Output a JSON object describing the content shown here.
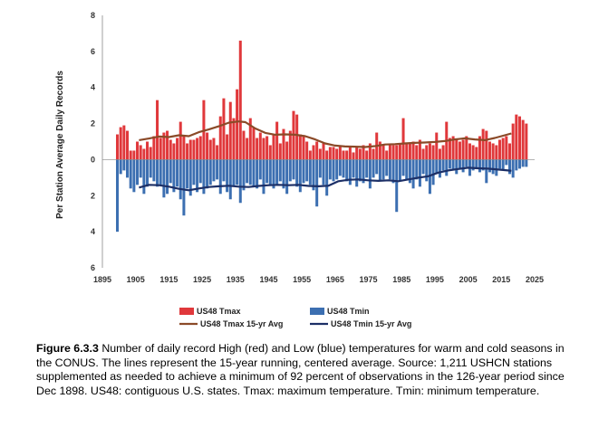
{
  "chart_data": {
    "type": "bar",
    "ylabel": "Per Station Average Daily Records",
    "ylim": [
      -6,
      8
    ],
    "y_ticks": [
      {
        "value": 8,
        "label": "8"
      },
      {
        "value": 6,
        "label": "6"
      },
      {
        "value": 4,
        "label": "4"
      },
      {
        "value": 2,
        "label": "2"
      },
      {
        "value": 0,
        "label": "0"
      },
      {
        "value": -2,
        "label": "2"
      },
      {
        "value": -4,
        "label": "4"
      },
      {
        "value": -6,
        "label": "6"
      }
    ],
    "xlim": [
      1895,
      2025
    ],
    "x_ticks": [
      "1895",
      "1905",
      "1915",
      "1925",
      "1935",
      "1945",
      "1955",
      "1965",
      "1975",
      "1985",
      "1995",
      "2005",
      "2015",
      "2025"
    ],
    "grid": false,
    "legend_position": "bottom",
    "years_start": 1899,
    "series": [
      {
        "name": "US48 Tmax",
        "color": "#e0383b",
        "values": [
          1.4,
          1.8,
          1.9,
          1.6,
          0.5,
          0.5,
          1.0,
          0.8,
          0.6,
          1.0,
          0.7,
          1.3,
          3.3,
          1.2,
          1.5,
          1.6,
          1.1,
          0.9,
          1.2,
          2.1,
          1.3,
          0.9,
          1.1,
          1.1,
          1.2,
          1.3,
          3.3,
          1.5,
          1.1,
          1.2,
          0.8,
          2.4,
          3.4,
          1.4,
          3.2,
          2.3,
          3.9,
          6.6,
          1.6,
          1.2,
          2.3,
          1.8,
          1.2,
          1.5,
          1.2,
          1.3,
          0.8,
          1.4,
          2.1,
          0.9,
          1.7,
          1.0,
          1.6,
          2.7,
          2.5,
          1.4,
          1.3,
          1.0,
          0.5,
          0.8,
          1.0,
          0.6,
          0.9,
          0.5,
          0.7,
          0.7,
          0.6,
          0.8,
          0.5,
          0.5,
          0.7,
          0.4,
          0.7,
          0.6,
          0.8,
          0.5,
          0.9,
          0.6,
          1.5,
          1.0,
          0.8,
          0.5,
          0.9,
          0.8,
          0.8,
          0.9,
          2.3,
          0.9,
          0.9,
          1.0,
          0.8,
          1.1,
          0.6,
          0.8,
          0.9,
          0.8,
          1.5,
          0.6,
          0.8,
          2.1,
          1.2,
          1.3,
          1.1,
          1.0,
          1.1,
          1.3,
          0.9,
          0.8,
          0.7,
          1.3,
          1.7,
          1.6,
          1.0,
          0.9,
          0.8,
          1.1,
          1.2,
          1.3,
          0.9,
          2.0,
          2.5,
          2.4,
          2.2,
          2.0
        ]
      },
      {
        "name": "US48 Tmin",
        "color": "#3c6fb1",
        "values": [
          4.0,
          0.8,
          0.6,
          1.0,
          1.6,
          1.8,
          1.4,
          1.0,
          1.9,
          1.5,
          1.0,
          1.2,
          1.5,
          1.4,
          2.1,
          1.9,
          1.3,
          1.8,
          1.5,
          2.2,
          3.1,
          1.6,
          2.0,
          1.4,
          1.8,
          1.3,
          1.9,
          1.6,
          1.4,
          1.2,
          1.1,
          1.9,
          1.2,
          1.8,
          2.2,
          1.5,
          1.4,
          2.4,
          1.7,
          1.3,
          1.4,
          1.5,
          1.6,
          1.1,
          1.9,
          1.3,
          1.4,
          1.6,
          1.4,
          1.2,
          1.6,
          1.9,
          1.2,
          1.1,
          1.5,
          1.8,
          1.3,
          1.2,
          1.4,
          1.7,
          2.6,
          1.0,
          1.4,
          2.0,
          1.1,
          1.2,
          1.1,
          0.9,
          1.0,
          1.2,
          1.4,
          1.0,
          1.5,
          1.2,
          1.3,
          1.0,
          1.6,
          1.0,
          0.8,
          1.2,
          1.1,
          0.9,
          1.1,
          1.3,
          2.9,
          1.2,
          0.9,
          1.1,
          1.3,
          1.6,
          1.1,
          1.5,
          0.8,
          1.2,
          1.9,
          1.4,
          0.8,
          1.0,
          0.6,
          0.9,
          0.5,
          0.6,
          0.8,
          0.5,
          0.7,
          0.4,
          0.9,
          0.6,
          0.5,
          0.7,
          0.6,
          1.3,
          0.7,
          0.8,
          0.9,
          0.5,
          0.6,
          0.3,
          0.8,
          1.0,
          0.6,
          0.5,
          0.4,
          0.4
        ]
      },
      {
        "name": "US48 Tmax 15-yr Avg",
        "color": "#8b4a28",
        "points": [
          [
            1906,
            1.08
          ],
          [
            1909,
            1.17
          ],
          [
            1912,
            1.28
          ],
          [
            1915,
            1.25
          ],
          [
            1918,
            1.35
          ],
          [
            1921,
            1.3
          ],
          [
            1924,
            1.52
          ],
          [
            1927,
            1.67
          ],
          [
            1930,
            1.85
          ],
          [
            1933,
            2.05
          ],
          [
            1936,
            2.12
          ],
          [
            1938,
            2.08
          ],
          [
            1941,
            1.73
          ],
          [
            1944,
            1.48
          ],
          [
            1947,
            1.38
          ],
          [
            1950,
            1.4
          ],
          [
            1953,
            1.38
          ],
          [
            1956,
            1.3
          ],
          [
            1959,
            1.12
          ],
          [
            1962,
            0.9
          ],
          [
            1965,
            0.78
          ],
          [
            1968,
            0.73
          ],
          [
            1971,
            0.72
          ],
          [
            1974,
            0.7
          ],
          [
            1977,
            0.75
          ],
          [
            1980,
            0.84
          ],
          [
            1983,
            0.86
          ],
          [
            1986,
            0.9
          ],
          [
            1989,
            0.93
          ],
          [
            1992,
            0.95
          ],
          [
            1995,
            0.98
          ],
          [
            1998,
            1.03
          ],
          [
            2001,
            1.12
          ],
          [
            2004,
            1.18
          ],
          [
            2007,
            1.12
          ],
          [
            2010,
            1.08
          ],
          [
            2013,
            1.2
          ],
          [
            2016,
            1.35
          ],
          [
            2018,
            1.45
          ]
        ]
      },
      {
        "name": "US48 Tmin 15-yr Avg",
        "color": "#1c2f66",
        "points": [
          [
            1906,
            -1.55
          ],
          [
            1909,
            -1.4
          ],
          [
            1912,
            -1.42
          ],
          [
            1915,
            -1.5
          ],
          [
            1918,
            -1.62
          ],
          [
            1921,
            -1.7
          ],
          [
            1924,
            -1.6
          ],
          [
            1927,
            -1.52
          ],
          [
            1930,
            -1.48
          ],
          [
            1933,
            -1.45
          ],
          [
            1936,
            -1.5
          ],
          [
            1939,
            -1.52
          ],
          [
            1942,
            -1.46
          ],
          [
            1945,
            -1.42
          ],
          [
            1948,
            -1.4
          ],
          [
            1951,
            -1.42
          ],
          [
            1954,
            -1.4
          ],
          [
            1957,
            -1.46
          ],
          [
            1960,
            -1.48
          ],
          [
            1963,
            -1.45
          ],
          [
            1966,
            -1.2
          ],
          [
            1969,
            -1.12
          ],
          [
            1972,
            -1.1
          ],
          [
            1975,
            -1.15
          ],
          [
            1978,
            -1.18
          ],
          [
            1981,
            -1.15
          ],
          [
            1984,
            -1.2
          ],
          [
            1987,
            -1.1
          ],
          [
            1990,
            -1.0
          ],
          [
            1993,
            -0.92
          ],
          [
            1996,
            -0.72
          ],
          [
            1999,
            -0.6
          ],
          [
            2002,
            -0.52
          ],
          [
            2005,
            -0.45
          ],
          [
            2008,
            -0.48
          ],
          [
            2011,
            -0.5
          ],
          [
            2014,
            -0.55
          ],
          [
            2017,
            -0.6
          ],
          [
            2018,
            -0.62
          ]
        ]
      }
    ]
  },
  "caption": {
    "label": "Figure 6.3.3",
    "text": " Number of daily record High (red) and Low (blue) temperatures for warm and cold seasons in the CONUS.  The lines represent the 15-year running, centered average.  Source: 1,211 USHCN stations supplemented as needed to achieve a minimum of 92 percent of observations in the 126-year period since Dec 1898. US48: contiguous U.S. states. Tmax: maximum temperature. Tmin: minimum temperature."
  }
}
